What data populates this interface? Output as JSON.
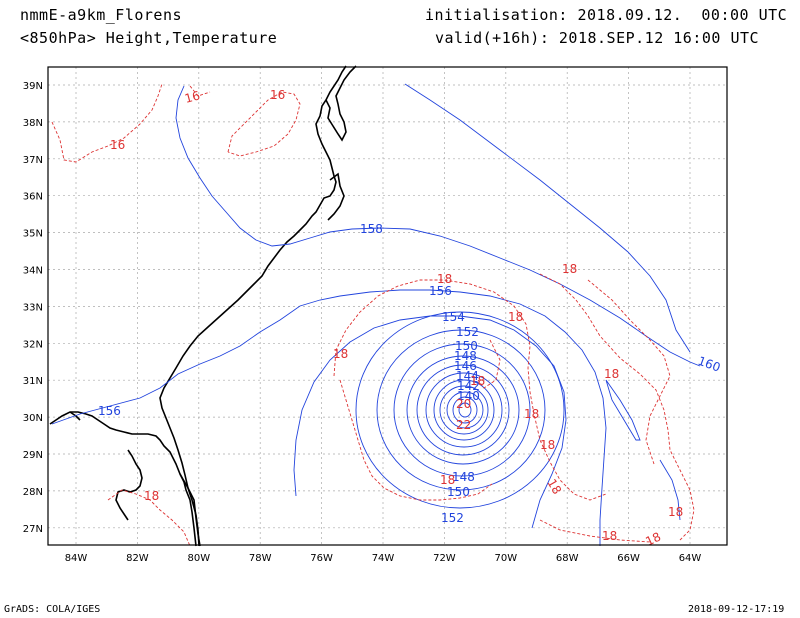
{
  "header": {
    "model": "nmmE-a9km_Florens",
    "level_fields": "<850hPa> Height,Temperature",
    "init": "initialisation: 2018.09.12.  00:00 UTC",
    "valid": "valid(+16h): 2018.SEP.12 16:00 UTC"
  },
  "footer": {
    "credit": "GrADS: COLA/IGES",
    "timestamp": "2018-09-12-17:19"
  },
  "colors": {
    "height_contour": "#2244dd",
    "temperature_contour": "#dd3333",
    "coastline": "#000000",
    "grid": "#aaaaaa"
  },
  "axes": {
    "lon_labels": [
      "84W",
      "82W",
      "80W",
      "78W",
      "76W",
      "74W",
      "72W",
      "70W",
      "68W",
      "66W",
      "64W"
    ],
    "lat_labels": [
      "39N",
      "38N",
      "37N",
      "36N",
      "35N",
      "34N",
      "33N",
      "32N",
      "31N",
      "30N",
      "29N",
      "28N",
      "27N"
    ]
  },
  "height_labels": [
    "156",
    "158",
    "156",
    "154",
    "152",
    "150",
    "148",
    "146",
    "144",
    "142",
    "140",
    "148",
    "150",
    "152",
    "160"
  ],
  "temp_labels": [
    "16",
    "16",
    "16",
    "18",
    "18",
    "18",
    "18",
    "18",
    "20",
    "22",
    "18",
    "18",
    "18",
    "18",
    "18",
    "18",
    "18",
    "18",
    "18"
  ]
}
